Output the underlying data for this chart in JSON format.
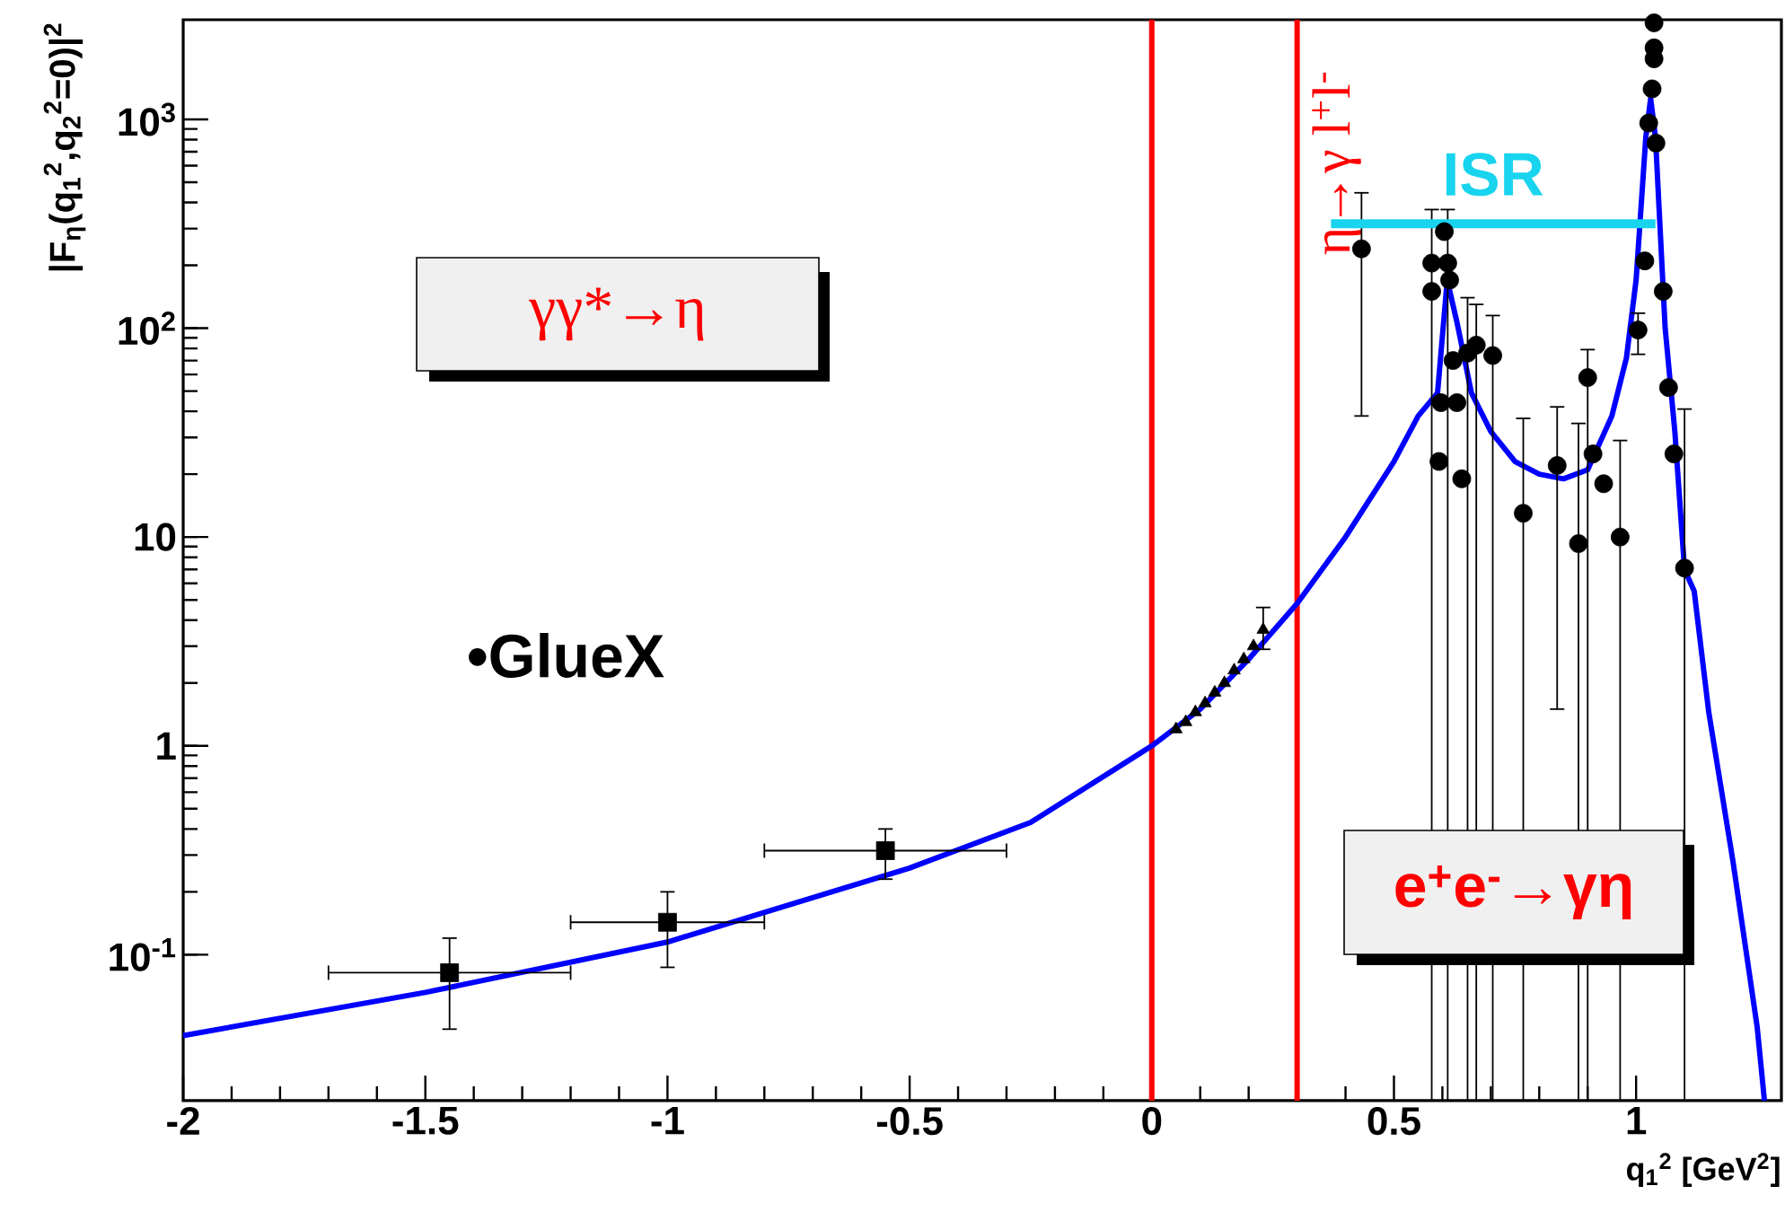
{
  "chart_data": {
    "type": "scatter",
    "xlabel": "q$_{1}$$^{2}$ [GeV$^{2}$]",
    "ylabel": "|F$_{η}$(q$_{1}$$^{2}$,q$_{2}$$^{2}$=0)|$^{2}$",
    "xlim": [
      -2,
      1.3
    ],
    "ylim": [
      0.02,
      3000
    ],
    "log": "y",
    "xticks": [
      -2,
      -1.5,
      -1,
      -0.5,
      0,
      0.5,
      1
    ],
    "yticks": [
      {
        "value": 0.1,
        "label": "10$^{-1}$"
      },
      1,
      10,
      {
        "value": 100,
        "label": "10$^{2}$"
      },
      {
        "value": 1000,
        "label": "10$^{3}$"
      }
    ],
    "series": [
      {
        "type": "line",
        "color": "#0000ff",
        "marker": "none",
        "x": [
          -2,
          -1.5,
          -1,
          -0.5,
          -0.25,
          0,
          0.1,
          0.2,
          0.3,
          0.4,
          0.5,
          0.55,
          0.59,
          0.61,
          0.63,
          0.66,
          0.7,
          0.75,
          0.8,
          0.85,
          0.9,
          0.95,
          0.98,
          1.0,
          1.02,
          1.03,
          1.04,
          1.06,
          1.08,
          1.1,
          1.12,
          1.15,
          1.2,
          1.25,
          1.265
        ],
        "values": [
          0.041,
          0.066,
          0.115,
          0.26,
          0.43,
          1.0,
          1.5,
          2.6,
          4.8,
          10,
          23,
          38,
          49,
          170,
          107,
          49,
          32,
          23,
          20,
          19,
          21,
          38,
          72,
          170,
          820,
          1260,
          820,
          100,
          32,
          7,
          5.5,
          1.45,
          0.28,
          0.045,
          0.02
        ]
      },
      {
        "color": "#000000",
        "marker": "square",
        "x": [
          -1.45,
          -1,
          -0.55
        ],
        "values": [
          0.082,
          0.143,
          0.315
        ],
        "errors": [
          [
            0.044,
            0.12
          ],
          [
            0.087,
            0.2
          ],
          [
            0.23,
            0.4
          ]
        ],
        "xerrors": [
          0.25,
          0.2,
          0.25
        ]
      },
      {
        "color": "#000000",
        "marker": "triangle",
        "x": [
          0.05,
          0.07,
          0.09,
          0.11,
          0.13,
          0.15,
          0.17,
          0.19,
          0.21,
          0.23
        ],
        "values": [
          1.2,
          1.3,
          1.45,
          1.6,
          1.8,
          2.0,
          2.3,
          2.6,
          3.0,
          3.6
        ],
        "errors": [
          null,
          null,
          null,
          null,
          null,
          null,
          null,
          null,
          null,
          [
            2.9,
            4.6
          ]
        ]
      },
      {
        "color": "#000000",
        "marker": "circle",
        "x": [
          0.433,
          0.578,
          0.611,
          0.578,
          0.615,
          0.604,
          0.652,
          0.67,
          0.704,
          0.622,
          0.597,
          0.63,
          0.593,
          0.64,
          0.767,
          0.837,
          0.881,
          0.9,
          0.911,
          0.933,
          0.967,
          1.004,
          1.018,
          1.026,
          1.033,
          1.037,
          1.037,
          1.037,
          1.041,
          1.056,
          1.067,
          1.078,
          1.1
        ],
        "values": [
          240,
          205,
          205,
          150,
          170,
          290,
          76,
          83,
          74,
          70,
          44,
          44,
          23,
          19,
          13,
          22,
          9.3,
          58,
          25,
          18,
          10,
          98,
          210,
          960,
          1400,
          1950,
          2200,
          2900,
          770,
          150,
          52,
          25,
          7.1
        ],
        "errors": [
          [
            38,
            445
          ],
          [
            0.02,
            370
          ],
          [
            0.02,
            370
          ],
          null,
          null,
          null,
          [
            0.02,
            140
          ],
          [
            0.02,
            130
          ],
          [
            0.02,
            115
          ],
          null,
          null,
          null,
          null,
          null,
          [
            0.02,
            37
          ],
          [
            1.5,
            42
          ],
          [
            0.02,
            35
          ],
          [
            0.02,
            79
          ],
          null,
          null,
          [
            0.02,
            29
          ],
          [
            75,
            118
          ],
          null,
          null,
          null,
          null,
          null,
          null,
          null,
          null,
          null,
          null,
          [
            0.02,
            41
          ]
        ]
      },
      {
        "type": "line",
        "name": "ISR",
        "color": "#18d4ee",
        "x": [
          0.37,
          1.04
        ],
        "values": [
          316,
          316
        ]
      }
    ],
    "ref_lines": [
      {
        "axis": "x",
        "value": 0,
        "color": "#ff0000"
      },
      {
        "axis": "x",
        "value": 0.3,
        "color": "#ff0000",
        "label": "η→γ l$^{+}$l$^{-}$"
      }
    ],
    "annotations": [
      "γγ*→η",
      "e$^{+}$e$^{-}$→γη",
      "•GlueX"
    ]
  }
}
